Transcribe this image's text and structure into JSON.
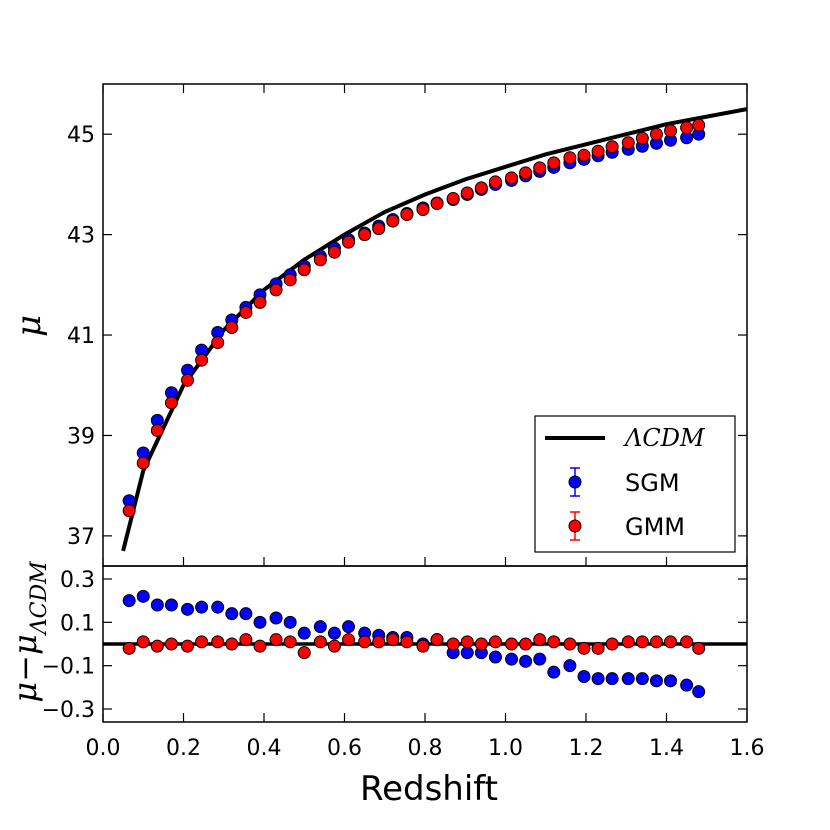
{
  "chart_data": [
    {
      "type": "scatter",
      "panel": "top",
      "xlabel": "Redshift",
      "ylabel": "μ",
      "xlim": [
        0.0,
        1.6
      ],
      "ylim": [
        36.4,
        46.0
      ],
      "x_ticks": [
        "0.0",
        "0.2",
        "0.4",
        "0.6",
        "0.8",
        "1.0",
        "1.2",
        "1.4",
        "1.6"
      ],
      "y_ticks": [
        {
          "value": 37,
          "label": "37"
        },
        {
          "value": 39,
          "label": "39"
        },
        {
          "value": 41,
          "label": "41"
        },
        {
          "value": 43,
          "label": "43"
        },
        {
          "value": 45,
          "label": "45"
        }
      ],
      "legend": {
        "placement": "lower-right",
        "entries": [
          {
            "label": "ΛCDM",
            "style": "line",
            "color": "#000000"
          },
          {
            "label": "SGM",
            "style": "marker",
            "color": "#0000ff"
          },
          {
            "label": "GMM",
            "style": "marker",
            "color": "#ff0000"
          }
        ]
      },
      "series": [
        {
          "name": "ΛCDM",
          "kind": "curve",
          "color": "#000000",
          "x": [
            0.05,
            0.1,
            0.2,
            0.3,
            0.4,
            0.5,
            0.6,
            0.7,
            0.8,
            0.9,
            1.0,
            1.1,
            1.2,
            1.3,
            1.4,
            1.5,
            1.6
          ],
          "y": [
            36.7,
            38.3,
            40.0,
            41.1,
            41.9,
            42.5,
            43.0,
            43.45,
            43.8,
            44.1,
            44.35,
            44.6,
            44.8,
            45.0,
            45.2,
            45.35,
            45.5
          ]
        },
        {
          "name": "SGM",
          "color": "#0000ff",
          "x": [
            0.065,
            0.1,
            0.135,
            0.17,
            0.21,
            0.245,
            0.285,
            0.32,
            0.355,
            0.39,
            0.43,
            0.465,
            0.5,
            0.54,
            0.575,
            0.61,
            0.65,
            0.685,
            0.72,
            0.755,
            0.795,
            0.83,
            0.87,
            0.905,
            0.94,
            0.975,
            1.015,
            1.05,
            1.085,
            1.12,
            1.16,
            1.195,
            1.23,
            1.265,
            1.305,
            1.34,
            1.375,
            1.41,
            1.45,
            1.48
          ],
          "y": [
            37.7,
            38.65,
            39.3,
            39.85,
            40.3,
            40.7,
            41.05,
            41.3,
            41.55,
            41.8,
            42.02,
            42.2,
            42.37,
            42.57,
            42.73,
            42.9,
            43.03,
            43.17,
            43.3,
            43.42,
            43.53,
            43.63,
            43.7,
            43.8,
            43.9,
            44.0,
            44.08,
            44.17,
            44.26,
            44.34,
            44.43,
            44.5,
            44.57,
            44.64,
            44.7,
            44.76,
            44.82,
            44.88,
            44.93,
            45.0
          ]
        },
        {
          "name": "GMM",
          "color": "#ff0000",
          "x": [
            0.065,
            0.1,
            0.135,
            0.17,
            0.21,
            0.245,
            0.285,
            0.32,
            0.355,
            0.39,
            0.43,
            0.465,
            0.5,
            0.54,
            0.575,
            0.61,
            0.65,
            0.685,
            0.72,
            0.755,
            0.795,
            0.83,
            0.87,
            0.905,
            0.94,
            0.975,
            1.015,
            1.05,
            1.085,
            1.12,
            1.16,
            1.195,
            1.23,
            1.265,
            1.305,
            1.34,
            1.375,
            1.41,
            1.45,
            1.48
          ],
          "y": [
            37.5,
            38.45,
            39.1,
            39.65,
            40.1,
            40.5,
            40.85,
            41.15,
            41.45,
            41.65,
            41.9,
            42.1,
            42.3,
            42.5,
            42.65,
            42.85,
            43.0,
            43.12,
            43.27,
            43.4,
            43.5,
            43.62,
            43.72,
            43.83,
            43.93,
            44.05,
            44.13,
            44.23,
            44.33,
            44.43,
            44.53,
            44.58,
            44.66,
            44.75,
            44.83,
            44.92,
            45.0,
            45.07,
            45.13,
            45.18
          ]
        }
      ]
    },
    {
      "type": "scatter",
      "panel": "bottom",
      "xlabel": "Redshift",
      "ylabel": "μ−μ_ΛCDM",
      "ylabel_main": "μ−μ",
      "ylabel_sub": "ΛCDM",
      "xlim": [
        0.0,
        1.6
      ],
      "ylim": [
        -0.36,
        0.36
      ],
      "x_ticks": [
        "0.0",
        "0.2",
        "0.4",
        "0.6",
        "0.8",
        "1.0",
        "1.2",
        "1.4",
        "1.6"
      ],
      "y_ticks": [
        {
          "value": -0.3,
          "label": "−0.3"
        },
        {
          "value": -0.1,
          "label": "−0.1"
        },
        {
          "value": 0.1,
          "label": "0.1"
        },
        {
          "value": 0.3,
          "label": "0.3"
        }
      ],
      "reference_line": 0.0,
      "series": [
        {
          "name": "SGM",
          "color": "#0000ff",
          "x": [
            0.065,
            0.1,
            0.135,
            0.17,
            0.21,
            0.245,
            0.285,
            0.32,
            0.355,
            0.39,
            0.43,
            0.465,
            0.5,
            0.54,
            0.575,
            0.61,
            0.65,
            0.685,
            0.72,
            0.755,
            0.795,
            0.83,
            0.87,
            0.905,
            0.94,
            0.975,
            1.015,
            1.05,
            1.085,
            1.12,
            1.16,
            1.195,
            1.23,
            1.265,
            1.305,
            1.34,
            1.375,
            1.41,
            1.45,
            1.48
          ],
          "y": [
            0.2,
            0.22,
            0.18,
            0.18,
            0.16,
            0.17,
            0.17,
            0.14,
            0.14,
            0.1,
            0.12,
            0.1,
            0.05,
            0.08,
            0.05,
            0.08,
            0.05,
            0.04,
            0.03,
            0.03,
            0.0,
            0.02,
            -0.04,
            -0.04,
            -0.04,
            -0.06,
            -0.07,
            -0.08,
            -0.07,
            -0.13,
            -0.1,
            -0.15,
            -0.16,
            -0.16,
            -0.16,
            -0.16,
            -0.17,
            -0.17,
            -0.19,
            -0.22
          ]
        },
        {
          "name": "GMM",
          "color": "#ff0000",
          "x": [
            0.065,
            0.1,
            0.135,
            0.17,
            0.21,
            0.245,
            0.285,
            0.32,
            0.355,
            0.39,
            0.43,
            0.465,
            0.5,
            0.54,
            0.575,
            0.61,
            0.65,
            0.685,
            0.72,
            0.755,
            0.795,
            0.83,
            0.87,
            0.905,
            0.94,
            0.975,
            1.015,
            1.05,
            1.085,
            1.12,
            1.16,
            1.195,
            1.23,
            1.265,
            1.305,
            1.34,
            1.375,
            1.41,
            1.45,
            1.48
          ],
          "y": [
            -0.02,
            0.01,
            -0.01,
            0.0,
            -0.01,
            0.01,
            0.01,
            0.0,
            0.02,
            -0.01,
            0.02,
            0.01,
            -0.04,
            0.01,
            -0.01,
            0.02,
            0.01,
            0.01,
            0.02,
            0.01,
            -0.01,
            0.02,
            0.0,
            0.01,
            0.0,
            0.01,
            0.0,
            0.0,
            0.02,
            0.01,
            0.0,
            -0.02,
            -0.02,
            0.0,
            0.01,
            0.01,
            0.01,
            0.01,
            0.01,
            -0.02
          ]
        }
      ]
    }
  ]
}
